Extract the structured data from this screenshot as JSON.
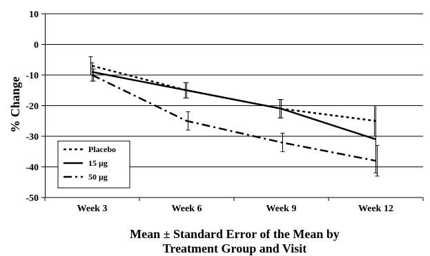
{
  "chart_data": {
    "type": "line",
    "categories": [
      "Week 3",
      "Week 6",
      "Week 9",
      "Week 12"
    ],
    "ylabel": "% Change",
    "xlabel_lines": [
      "Mean ± Standard Error of the Mean by",
      "Treatment Group and Visit"
    ],
    "ylim": [
      -50,
      10
    ],
    "yticks": [
      10,
      0,
      -10,
      -20,
      -30,
      -40,
      -50
    ],
    "grid": true,
    "legend_position": "bottom-left",
    "series": [
      {
        "name": "Placebo",
        "style": "dotted",
        "values": [
          -7,
          -15,
          -21,
          -25
        ],
        "errors": [
          3,
          2.5,
          3,
          5
        ]
      },
      {
        "name": "15 µg",
        "style": "solid",
        "values": [
          -9,
          -15,
          -21,
          -31
        ],
        "errors": [
          3,
          2.5,
          3,
          11
        ]
      },
      {
        "name": "50 µg",
        "style": "dash-dot",
        "values": [
          -10,
          -25,
          -32,
          -38
        ],
        "errors": [
          2,
          3,
          3,
          5
        ]
      }
    ]
  }
}
